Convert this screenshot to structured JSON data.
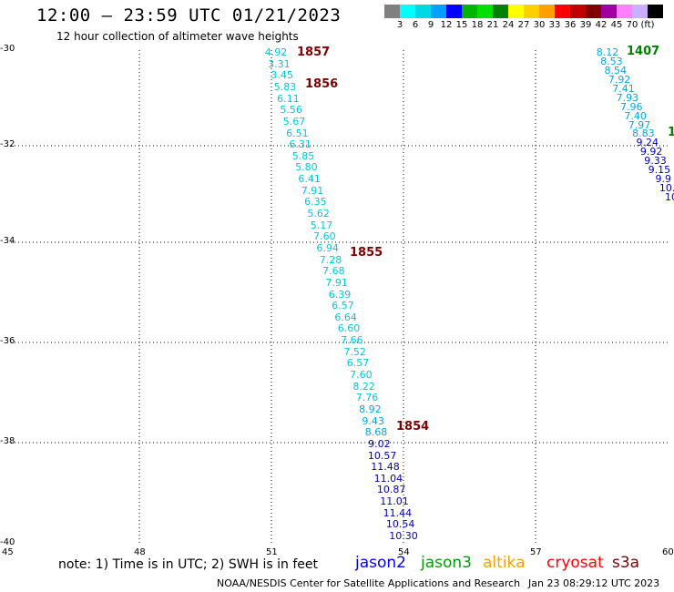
{
  "header": {
    "title": "12:00 – 23:59 UTC 01/21/2023",
    "subtitle": "12 hour collection of altimeter wave heights"
  },
  "colorbar": {
    "colors": [
      "#808080",
      "#00ffff",
      "#00d8e8",
      "#00a0ff",
      "#0000ff",
      "#00b400",
      "#00e000",
      "#008000",
      "#ffff00",
      "#ffd000",
      "#ffa000",
      "#ff0000",
      "#c00000",
      "#800000",
      "#a000a0",
      "#ff80ff",
      "#c8b0ff",
      "#000000"
    ],
    "labels": [
      "3",
      "6",
      "9",
      "12",
      "15",
      "18",
      "21",
      "24",
      "27",
      "30",
      "33",
      "36",
      "39",
      "42",
      "45",
      "70",
      "(ft)"
    ]
  },
  "axes": {
    "y_labels": [
      "-30",
      "-32",
      "-34",
      "-36",
      "-38",
      "-40"
    ],
    "x_labels": [
      "45",
      "48",
      "51",
      "54",
      "57",
      "60"
    ]
  },
  "passes": [
    {
      "time": "1857",
      "color": "#800000"
    },
    {
      "time": "1856",
      "color": "#800000"
    },
    {
      "time": "1855",
      "color": "#800000"
    },
    {
      "time": "1854",
      "color": "#800000"
    },
    {
      "time": "1407",
      "color": "#008000"
    },
    {
      "time": "1",
      "color": "#008000"
    }
  ],
  "observations_left": [
    "4.92",
    "3.31",
    "3.45",
    "5.83",
    "6.11",
    "5.56",
    "5.67",
    "6.51",
    "6.31",
    "5.85",
    "5.80",
    "6.41",
    "7.91",
    "6.35",
    "5.62",
    "5.17",
    "7.60",
    "6.94",
    "7.28",
    "7.68",
    "7.91",
    "6.39",
    "6.57",
    "6.64",
    "6.60",
    "7.66",
    "7.52",
    "6.57",
    "7.60",
    "8.22",
    "7.76",
    "8.92",
    "9.43",
    "8.68",
    "9.02",
    "10.57",
    "11.48",
    "11.04",
    "10.87",
    "11.01",
    "11.44",
    "10.54",
    "10.30"
  ],
  "observations_right": [
    "8.12",
    "8.53",
    "8.54",
    "7.92",
    "7.41",
    "7.93",
    "7.96",
    "7.40",
    "7.97",
    "8.83",
    "9.24",
    "9.92",
    "9.33",
    "9.15",
    "9.9",
    "10.",
    "10"
  ],
  "obs_colors": {
    "cyan": "#00c8dc",
    "aqua": "#00a8e8",
    "blue": "#0000c0"
  },
  "legend": {
    "note": "note:  1) Time is in UTC; 2) SWH is in feet",
    "satellites": [
      {
        "name": "jason2",
        "color": "#0000ff"
      },
      {
        "name": "jason3",
        "color": "#00a000"
      },
      {
        "name": "altika",
        "color": "#ffa000"
      },
      {
        "name": "cryosat",
        "color": "#ff0000"
      },
      {
        "name": "s3a",
        "color": "#800000"
      }
    ]
  },
  "footer": {
    "credit": "NOAA/NESDIS Center for Satellite Applications and Research",
    "timestamp": "Jan 23 08:29:12 UTC 2023"
  }
}
